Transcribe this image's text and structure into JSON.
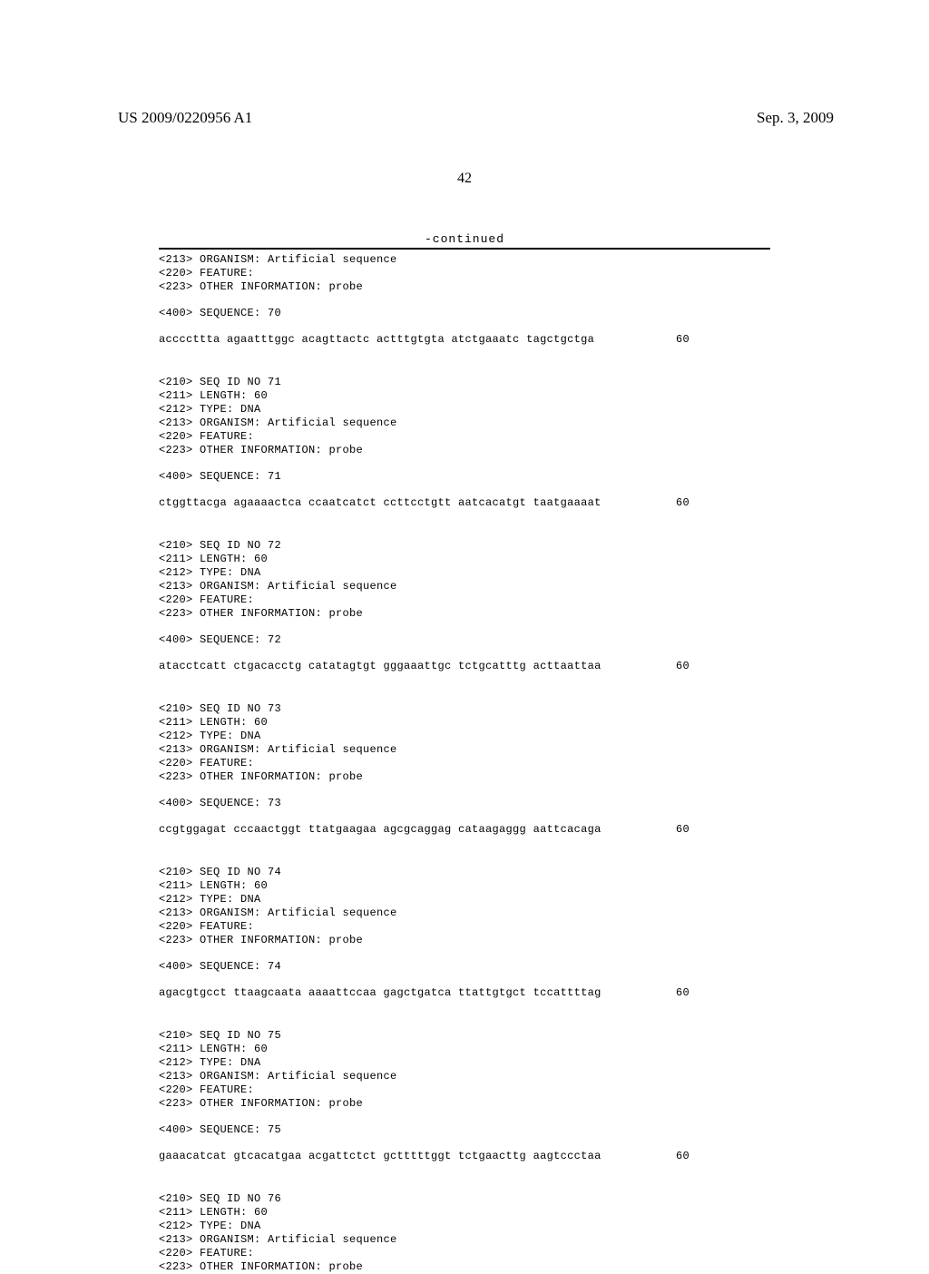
{
  "header": {
    "publication_number": "US 2009/0220956 A1",
    "publication_date": "Sep. 3, 2009",
    "page_number": "42",
    "continued_label": "-continued"
  },
  "blocks": [
    {
      "lines": [
        "<213> ORGANISM: Artificial sequence",
        "<220> FEATURE:",
        "<223> OTHER INFORMATION: probe"
      ],
      "seq_label": "<400> SEQUENCE: 70",
      "seq_data": "accccttta agaatttggc acagttactc actttgtgta atctgaaatc tagctgctga",
      "seq_len": "60"
    },
    {
      "lines": [
        "<210> SEQ ID NO 71",
        "<211> LENGTH: 60",
        "<212> TYPE: DNA",
        "<213> ORGANISM: Artificial sequence",
        "<220> FEATURE:",
        "<223> OTHER INFORMATION: probe"
      ],
      "seq_label": "<400> SEQUENCE: 71",
      "seq_data": "ctggttacga agaaaactca ccaatcatct ccttcctgtt aatcacatgt taatgaaaat",
      "seq_len": "60"
    },
    {
      "lines": [
        "<210> SEQ ID NO 72",
        "<211> LENGTH: 60",
        "<212> TYPE: DNA",
        "<213> ORGANISM: Artificial sequence",
        "<220> FEATURE:",
        "<223> OTHER INFORMATION: probe"
      ],
      "seq_label": "<400> SEQUENCE: 72",
      "seq_data": "atacctcatt ctgacacctg catatagtgt gggaaattgc tctgcatttg acttaattaa",
      "seq_len": "60"
    },
    {
      "lines": [
        "<210> SEQ ID NO 73",
        "<211> LENGTH: 60",
        "<212> TYPE: DNA",
        "<213> ORGANISM: Artificial sequence",
        "<220> FEATURE:",
        "<223> OTHER INFORMATION: probe"
      ],
      "seq_label": "<400> SEQUENCE: 73",
      "seq_data": "ccgtggagat cccaactggt ttatgaagaa agcgcaggag cataagaggg aattcacaga",
      "seq_len": "60"
    },
    {
      "lines": [
        "<210> SEQ ID NO 74",
        "<211> LENGTH: 60",
        "<212> TYPE: DNA",
        "<213> ORGANISM: Artificial sequence",
        "<220> FEATURE:",
        "<223> OTHER INFORMATION: probe"
      ],
      "seq_label": "<400> SEQUENCE: 74",
      "seq_data": "agacgtgcct ttaagcaata aaaattccaa gagctgatca ttattgtgct tccattttag",
      "seq_len": "60"
    },
    {
      "lines": [
        "<210> SEQ ID NO 75",
        "<211> LENGTH: 60",
        "<212> TYPE: DNA",
        "<213> ORGANISM: Artificial sequence",
        "<220> FEATURE:",
        "<223> OTHER INFORMATION: probe"
      ],
      "seq_label": "<400> SEQUENCE: 75",
      "seq_data": "gaaacatcat gtcacatgaa acgattctct gctttttggt tctgaacttg aagtccctaa",
      "seq_len": "60"
    },
    {
      "lines": [
        "<210> SEQ ID NO 76",
        "<211> LENGTH: 60",
        "<212> TYPE: DNA",
        "<213> ORGANISM: Artificial sequence",
        "<220> FEATURE:",
        "<223> OTHER INFORMATION: probe"
      ],
      "seq_label": null,
      "seq_data": null,
      "seq_len": null
    }
  ]
}
